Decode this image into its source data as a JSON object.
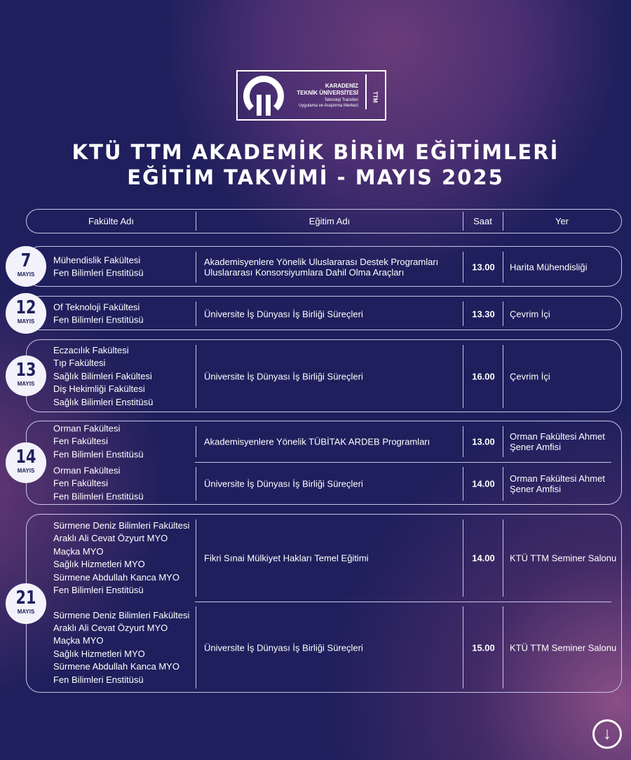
{
  "logo": {
    "line1": "KARADENİZ",
    "line2": "TEKNİK ÜNİVERSİTESİ",
    "line3": "Teknoloji Transferi",
    "line4": "Uygulama ve Araştırma Merkezi",
    "side": "TTM"
  },
  "title": {
    "line1": "KTÜ TTM AKADEMİK BİRİM EĞİTİMLERİ",
    "line2": "EĞİTİM TAKVİMİ - MAYIS 2025"
  },
  "headers": {
    "faculty": "Fakülte Adı",
    "course": "Eğitim Adı",
    "time": "Saat",
    "place": "Yer"
  },
  "groups": [
    {
      "day": "7",
      "month": "MAYIS",
      "entries": [
        {
          "faculties": "Mühendislik Fakültesi\nFen Bilimleri Enstitüsü",
          "course": "Akademisyenlere Yönelik Uluslararası Destek Programları\nUluslararası Konsorsiyumlara Dahil Olma Araçları",
          "time": "13.00",
          "place": "Harita Mühendisliği"
        }
      ]
    },
    {
      "day": "12",
      "month": "MAYIS",
      "entries": [
        {
          "faculties": "Of Teknoloji Fakültesi\nFen Bilimleri Enstitüsü",
          "course": "Üniversite İş Dünyası İş Birliği Süreçleri",
          "time": "13.30",
          "place": "Çevrim İçi"
        }
      ]
    },
    {
      "day": "13",
      "month": "MAYIS",
      "entries": [
        {
          "faculties": "Eczacılık Fakültesi\nTıp Fakültesi\nSağlık Bilimleri Fakültesi\nDiş Hekimliği Fakültesi\nSağlık Bilimleri Enstitüsü",
          "course": "Üniversite İş Dünyası İş Birliği Süreçleri",
          "time": "16.00",
          "place": "Çevrim İçi"
        }
      ]
    },
    {
      "day": "14",
      "month": "MAYIS",
      "entries": [
        {
          "faculties": "Orman Fakültesi\nFen Fakültesi\nFen Bilimleri Enstitüsü",
          "course": "Akademisyenlere Yönelik TÜBİTAK ARDEB Programları",
          "time": "13.00",
          "place": "Orman Fakültesi Ahmet\nŞener Amfisi"
        },
        {
          "faculties": "Orman Fakültesi\nFen Fakültesi\nFen Bilimleri Enstitüsü",
          "course": "Üniversite İş Dünyası İş Birliği Süreçleri",
          "time": "14.00",
          "place": "Orman Fakültesi Ahmet\nŞener Amfisi"
        }
      ]
    },
    {
      "day": "21",
      "month": "MAYIS",
      "entries": [
        {
          "faculties": "Sürmene Deniz Bilimleri Fakültesi\nAraklı Ali Cevat Özyurt MYO\nMaçka MYO\nSağlık Hizmetleri MYO\nSürmene Abdullah Kanca MYO\nFen Bilimleri Enstitüsü",
          "course": "Fikri Sınai Mülkiyet Hakları Temel Eğitimi",
          "time": "14.00",
          "place": "KTÜ TTM Seminer Salonu"
        },
        {
          "faculties": "Sürmene Deniz Bilimleri Fakültesi\nAraklı Ali Cevat Özyurt MYO\nMaçka MYO\nSağlık Hizmetleri MYO\nSürmene Abdullah Kanca MYO\nFen Bilimleri Enstitüsü",
          "course": "Üniversite İş Dünyası İş Birliği Süreçleri",
          "time": "15.00",
          "place": "KTÜ TTM Seminer Salonu"
        }
      ]
    }
  ],
  "icons": {
    "scroll": "arrow-down-circle-icon"
  }
}
